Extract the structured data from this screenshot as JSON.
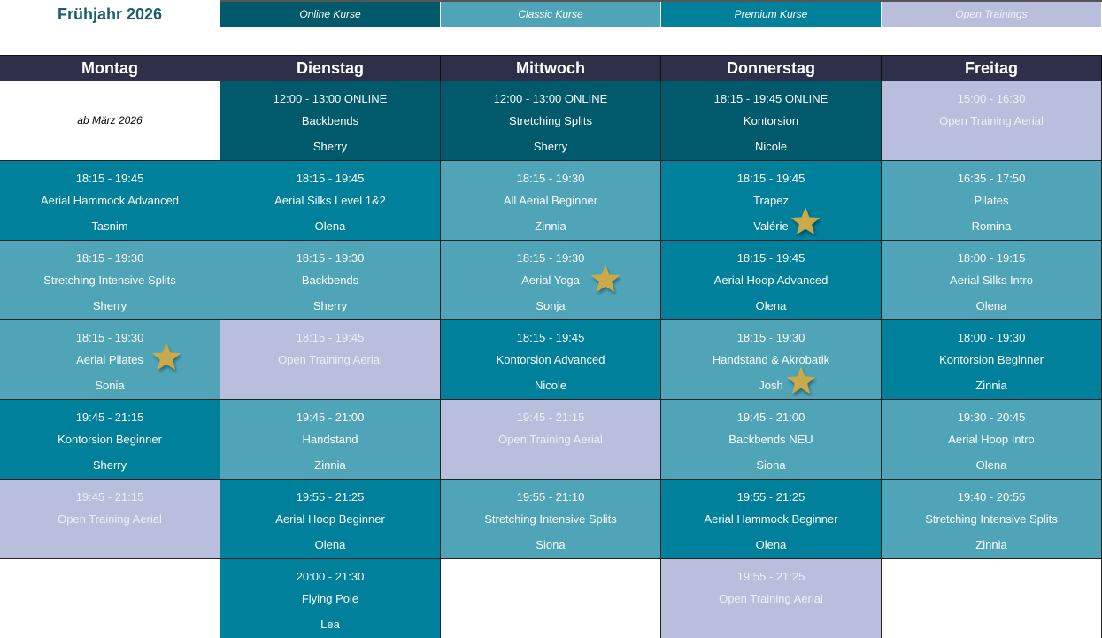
{
  "header": {
    "title": "Frühjahr 2026"
  },
  "legend": [
    {
      "label": "Online Kurse",
      "type": "online"
    },
    {
      "label": "Classic Kurse",
      "type": "classic"
    },
    {
      "label": "Premium Kurse",
      "type": "premium"
    },
    {
      "label": "Open Trainings",
      "type": "open"
    }
  ],
  "colors": {
    "online": "#005a6b",
    "classic": "#4fa5b7",
    "premium": "#00809a",
    "open": "#b8bedb",
    "white": "#ffffff",
    "header": "#2d3048",
    "star": "#c9a94a"
  },
  "days": [
    "Montag",
    "Dienstag",
    "Mittwoch",
    "Donnerstag",
    "Freitag"
  ],
  "rows": [
    [
      {
        "type": "white",
        "note": "ab  März 2026"
      },
      {
        "type": "online",
        "time": "12:00 - 13:00 ONLINE",
        "course": "Backbends",
        "teacher": "Sherry"
      },
      {
        "type": "online",
        "time": "12:00 - 13:00 ONLINE",
        "course": "Stretching Splits",
        "teacher": "Sherry"
      },
      {
        "type": "online",
        "time": "18:15 - 19:45 ONLINE",
        "course": "Kontorsion",
        "teacher": "Nicole"
      },
      {
        "type": "open",
        "time": "15:00 - 16:30",
        "course": "Open Training Aerial"
      }
    ],
    [
      {
        "type": "premium",
        "time": "18:15 - 19:45",
        "course": "Aerial Hammock Advanced",
        "teacher": "Tasnim"
      },
      {
        "type": "premium",
        "time": "18:15 - 19:45",
        "course": "Aerial Silks Level 1&2",
        "teacher": "Olena"
      },
      {
        "type": "classic",
        "time": "18:15 - 19:30",
        "course": "All Aerial Beginner",
        "teacher": "Zinnia"
      },
      {
        "type": "premium",
        "time": "18:15 - 19:45",
        "course": "Trapez",
        "teacher": "Valérie",
        "star": true
      },
      {
        "type": "classic",
        "time": "16:35 - 17:50",
        "course": "Pilates",
        "teacher": "Romina"
      }
    ],
    [
      {
        "type": "classic",
        "time": "18:15 - 19:30",
        "course": "Stretching Intensive Splits",
        "teacher": "Sherry"
      },
      {
        "type": "classic",
        "time": "18:15 - 19:30",
        "course": "Backbends",
        "teacher": "Sherry"
      },
      {
        "type": "classic",
        "time": "18:15 - 19:30",
        "course": "Aerial Yoga",
        "teacher": "Sonja",
        "star": true
      },
      {
        "type": "premium",
        "time": "18:15 - 19:45",
        "course": "Aerial Hoop Advanced",
        "teacher": "Olena"
      },
      {
        "type": "classic",
        "time": "18:00 - 19:15",
        "course": "Aerial Silks Intro",
        "teacher": "Olena"
      }
    ],
    [
      {
        "type": "classic",
        "time": "18:15 - 19:30",
        "course": "Aerial Pilates",
        "teacher": "Sonia",
        "star": true
      },
      {
        "type": "open",
        "time": "18:15 - 19:45",
        "course": "Open Training Aerial"
      },
      {
        "type": "premium",
        "time": "18:15 - 19:45",
        "course": "Kontorsion Advanced",
        "teacher": "Nicole"
      },
      {
        "type": "classic",
        "time": "18:15 - 19:30",
        "course": "Handstand & Akrobatik",
        "teacher": "Josh",
        "star": true
      },
      {
        "type": "premium",
        "time": "18:00 - 19:30",
        "course": "Kontorsion Beginner",
        "teacher": "Zinnia"
      }
    ],
    [
      {
        "type": "premium",
        "time": "19:45 - 21:15",
        "course": "Kontorsion Beginner",
        "teacher": "Sherry"
      },
      {
        "type": "classic",
        "time": "19:45 - 21:00",
        "course": "Handstand",
        "teacher": "Zinnia"
      },
      {
        "type": "open",
        "time": "19:45 - 21:15",
        "course": "Open Training Aerial"
      },
      {
        "type": "classic",
        "time": "19:45 - 21:00",
        "course": "Backbends NEU",
        "teacher": "Siona"
      },
      {
        "type": "classic",
        "time": "19:30 - 20:45",
        "course": "Aerial Hoop Intro",
        "teacher": "Olena"
      }
    ],
    [
      {
        "type": "open",
        "time": "19:45 - 21:15",
        "course": "Open Training Aerial"
      },
      {
        "type": "premium",
        "time": "19:55 - 21:25",
        "course": "Aerial Hoop Beginner",
        "teacher": "Olena"
      },
      {
        "type": "classic",
        "time": "19:55 - 21:10",
        "course": "Stretching Intensive Splits",
        "teacher": "Siona"
      },
      {
        "type": "premium",
        "time": "19:55 - 21:25",
        "course": "Aerial Hammock Beginner",
        "teacher": "Olena"
      },
      {
        "type": "classic",
        "time": "19:40 - 20:55",
        "course": "Stretching Intensive Splits",
        "teacher": "Zinnia"
      }
    ],
    [
      {
        "type": "white"
      },
      {
        "type": "premium",
        "time": "20:00 - 21:30",
        "course": "Flying Pole",
        "teacher": "Lea"
      },
      {
        "type": "white"
      },
      {
        "type": "open",
        "time": "19:55 - 21:25",
        "course": "Open Training Aerial"
      },
      {
        "type": "white"
      }
    ]
  ]
}
